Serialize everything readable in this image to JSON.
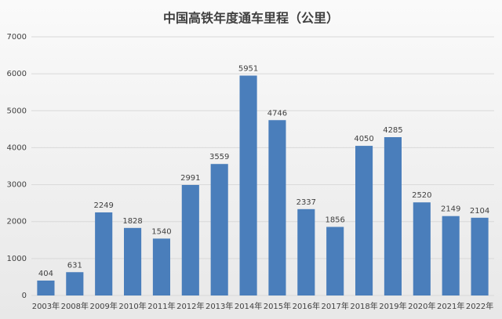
{
  "chart_data": {
    "type": "bar",
    "title": "中国高铁年度通车里程（公里）",
    "categories": [
      "2003年",
      "2008年",
      "2009年",
      "2010年",
      "2011年",
      "2012年",
      "2013年",
      "2014年",
      "2015年",
      "2016年",
      "2017年",
      "2018年",
      "2019年",
      "2020年",
      "2021年",
      "2022年"
    ],
    "values": [
      404,
      631,
      2249,
      1828,
      1540,
      2991,
      3559,
      5951,
      4746,
      2337,
      1856,
      4050,
      4285,
      2520,
      2149,
      2104
    ],
    "color": "#4a7ebb",
    "ylim": [
      0,
      7000
    ],
    "yticks": [
      0,
      1000,
      2000,
      3000,
      4000,
      5000,
      6000,
      7000
    ],
    "grid": true
  }
}
